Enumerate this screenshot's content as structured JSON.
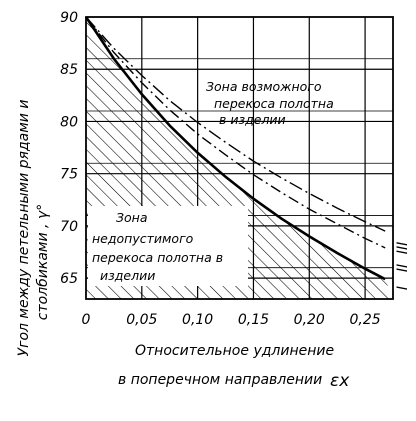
{
  "chart_data": {
    "type": "line",
    "xlabel": [
      "Относительное удлинение",
      "в поперечном направлении"
    ],
    "xlabel_symbol": "εx",
    "ylabel": [
      "Угол между петельными рядами и",
      "столбиками , γ°"
    ],
    "xlim": [
      0,
      0.275
    ],
    "ylim": [
      63,
      90
    ],
    "x_ticks": [
      "0",
      "0,05",
      "0,10",
      "0,15",
      "0,20",
      "0,25"
    ],
    "x_tick_values": [
      0,
      0.05,
      0.1,
      0.15,
      0.2,
      0.25
    ],
    "y_ticks": [
      "90",
      "85",
      "80",
      "75",
      "70",
      "65"
    ],
    "y_tick_values": [
      90,
      85,
      80,
      75,
      70,
      65
    ],
    "grid": true,
    "series": [
      {
        "name": "I",
        "style": "solid",
        "x": [
          0,
          0.025,
          0.05,
          0.075,
          0.1,
          0.125,
          0.15,
          0.175,
          0.2,
          0.225,
          0.25,
          0.268
        ],
        "y": [
          90,
          86.0,
          82.6,
          79.6,
          77.0,
          74.7,
          72.6,
          70.7,
          69.0,
          67.4,
          65.9,
          64.9
        ]
      },
      {
        "name": "II",
        "style": "dashdot",
        "x": [
          0,
          0.025,
          0.05,
          0.075,
          0.1,
          0.125,
          0.15,
          0.175,
          0.2,
          0.225,
          0.25,
          0.268
        ],
        "y": [
          90,
          86.6,
          83.7,
          81.1,
          78.8,
          76.8,
          74.9,
          73.2,
          71.6,
          70.2,
          68.8,
          67.9
        ]
      },
      {
        "name": "III",
        "style": "dashdot",
        "x": [
          0,
          0.025,
          0.05,
          0.075,
          0.1,
          0.125,
          0.15,
          0.175,
          0.2,
          0.225,
          0.25,
          0.268
        ],
        "y": [
          90,
          87.0,
          84.4,
          82.0,
          79.9,
          78.0,
          76.2,
          74.6,
          73.1,
          71.7,
          70.4,
          69.5
        ]
      }
    ],
    "annotations": [
      {
        "id": "zone_possible",
        "lines": [
          "Зона возможного",
          "перекоса полотна",
          "в изделии"
        ]
      },
      {
        "id": "zone_inadmissible",
        "lines": [
          "Зона",
          "недопустимого",
          "перекоса полотна в",
          "изделии"
        ]
      }
    ],
    "curve_labels": [
      "I",
      "II",
      "III"
    ]
  }
}
